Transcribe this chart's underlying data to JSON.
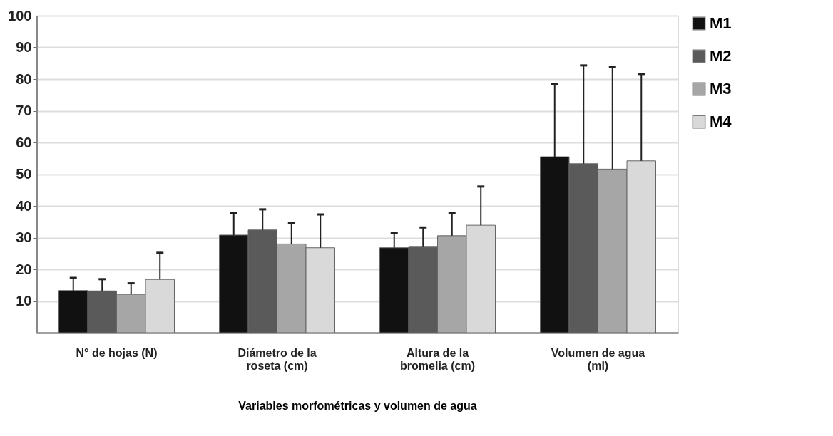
{
  "chart_data": {
    "type": "bar",
    "categories": [
      "N° de hojas (N)",
      "Diámetro de la roseta (cm)",
      "Altura de la bromelia (cm)",
      "Volumen de agua (ml)"
    ],
    "xlabel": "Variables morfométricas y volumen de agua",
    "series": [
      {
        "name": "M1",
        "color": "#111111",
        "values": [
          13.3,
          30.8,
          26.8,
          55.5
        ],
        "errors": [
          [
            13.3,
            17.3
          ],
          [
            30.8,
            37.8
          ],
          [
            26.8,
            31.5
          ],
          [
            55.5,
            78.4
          ]
        ]
      },
      {
        "name": "M2",
        "color": "#5a5a5a",
        "values": [
          13.2,
          32.4,
          27.0,
          53.3
        ],
        "errors": [
          [
            13.2,
            16.9
          ],
          [
            32.4,
            38.9
          ],
          [
            27.0,
            33.2
          ],
          [
            53.3,
            84.3
          ]
        ]
      },
      {
        "name": "M3",
        "color": "#a6a6a6",
        "values": [
          12.1,
          28.0,
          30.6,
          51.6
        ],
        "errors": [
          [
            12.1,
            15.6
          ],
          [
            28.0,
            34.5
          ],
          [
            30.6,
            37.8
          ],
          [
            51.6,
            83.8
          ]
        ]
      },
      {
        "name": "M4",
        "color": "#d9d9d9",
        "values": [
          16.8,
          26.8,
          33.9,
          54.2
        ],
        "errors": [
          [
            16.8,
            25.2
          ],
          [
            26.8,
            37.3
          ],
          [
            33.9,
            46.1
          ],
          [
            54.2,
            81.6
          ]
        ]
      }
    ],
    "ylim": [
      0,
      100
    ],
    "yticks": [
      {
        "value": 0,
        "label": null
      },
      10,
      20,
      30,
      40,
      50,
      60,
      70,
      80,
      90,
      100
    ],
    "grid": "y",
    "legend": "right"
  }
}
